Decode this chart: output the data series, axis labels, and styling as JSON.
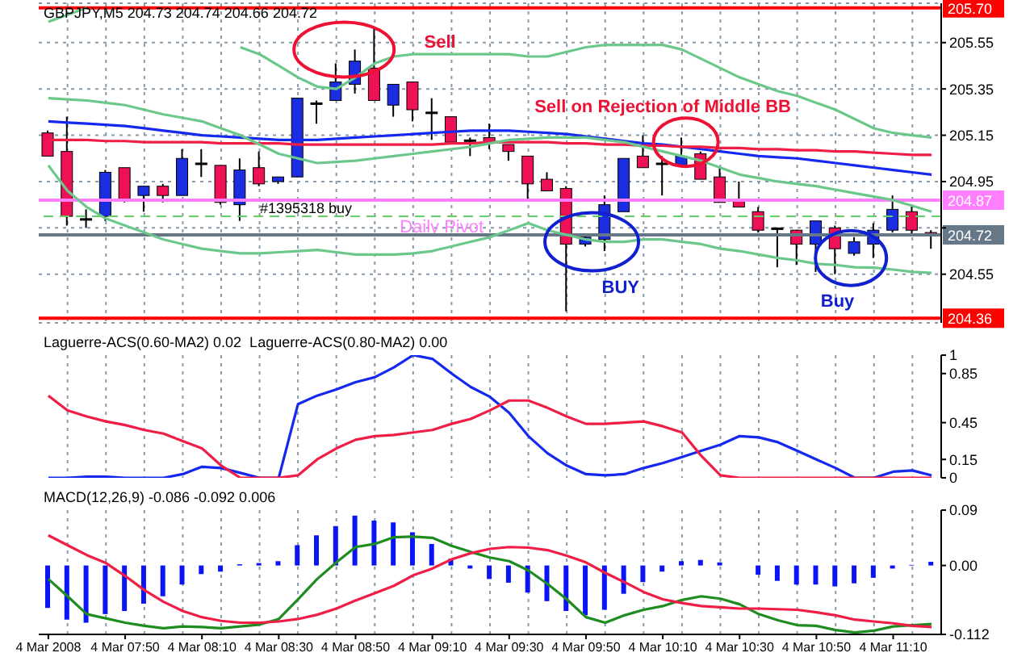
{
  "chart_data": [
    {
      "type": "candlestick",
      "title": "GBPJPY,M5 204.73 204.74 204.66 204.72",
      "categories": [
        null,
        null,
        null,
        null,
        null,
        null,
        null,
        null,
        null,
        null,
        null,
        null,
        null,
        null,
        null,
        null,
        null,
        null,
        null,
        null,
        null,
        null,
        null,
        null,
        null,
        null,
        null,
        null,
        null,
        null,
        null,
        null,
        null,
        null,
        null,
        null,
        null,
        null,
        null,
        null,
        null,
        null,
        null,
        null,
        null,
        null,
        null
      ],
      "ohlc": [
        [
          205.16,
          205.17,
          205.06,
          205.06
        ],
        [
          205.08,
          205.23,
          204.76,
          204.8
        ],
        [
          204.79,
          204.83,
          204.75,
          204.79
        ],
        [
          204.8,
          205.0,
          204.78,
          204.99
        ],
        [
          205.01,
          205.01,
          204.86,
          204.87
        ],
        [
          204.89,
          204.93,
          204.82,
          204.93
        ],
        [
          204.93,
          204.94,
          204.86,
          204.89
        ],
        [
          204.89,
          205.09,
          204.89,
          205.05
        ],
        [
          205.03,
          205.09,
          204.97,
          205.03
        ],
        [
          205.02,
          205.02,
          204.85,
          204.86
        ],
        [
          204.85,
          205.05,
          204.78,
          205.0
        ],
        [
          205.01,
          205.08,
          204.93,
          204.94
        ],
        [
          204.95,
          204.97,
          204.94,
          204.97
        ],
        [
          204.97,
          205.31,
          204.97,
          205.31
        ],
        [
          205.29,
          205.3,
          205.2,
          205.29
        ],
        [
          205.3,
          205.46,
          205.3,
          205.38
        ],
        [
          205.37,
          205.52,
          205.33,
          205.47
        ],
        [
          205.44,
          205.62,
          205.3,
          205.3
        ],
        [
          205.28,
          205.37,
          205.23,
          205.37
        ],
        [
          205.38,
          205.38,
          205.21,
          205.26
        ],
        [
          205.25,
          205.31,
          205.13,
          205.25
        ],
        [
          205.23,
          205.23,
          205.12,
          205.12
        ],
        [
          205.13,
          205.14,
          205.06,
          205.13
        ],
        [
          205.14,
          205.2,
          205.09,
          205.12
        ],
        [
          205.11,
          205.11,
          205.04,
          205.08
        ],
        [
          205.06,
          205.06,
          204.87,
          204.94
        ],
        [
          204.96,
          204.99,
          204.91,
          204.91
        ],
        [
          204.92,
          204.93,
          204.39,
          204.68
        ],
        [
          204.68,
          204.72,
          204.67,
          204.71
        ],
        [
          204.7,
          204.89,
          204.65,
          204.85
        ],
        [
          204.82,
          205.05,
          204.82,
          205.05
        ],
        [
          205.06,
          205.15,
          205.01,
          205.01
        ],
        [
          205.03,
          205.06,
          204.89,
          205.03
        ],
        [
          205.02,
          205.14,
          205.02,
          205.06
        ],
        [
          205.07,
          205.08,
          204.96,
          204.96
        ],
        [
          204.97,
          205.01,
          204.86,
          204.86
        ],
        [
          204.87,
          204.95,
          204.84,
          204.84
        ],
        [
          204.82,
          204.84,
          204.73,
          204.74
        ],
        [
          204.75,
          204.75,
          204.58,
          204.75
        ],
        [
          204.74,
          204.74,
          204.59,
          204.68
        ],
        [
          204.68,
          204.78,
          204.56,
          204.78
        ],
        [
          204.75,
          204.76,
          204.55,
          204.66
        ],
        [
          204.64,
          204.71,
          204.63,
          204.69
        ],
        [
          204.68,
          204.77,
          204.62,
          204.74
        ],
        [
          204.74,
          204.89,
          204.73,
          204.83
        ],
        [
          204.82,
          204.85,
          204.72,
          204.74
        ],
        [
          204.73,
          204.74,
          204.66,
          204.72
        ]
      ],
      "colors": [
        "#ee1155",
        "#ee1155",
        "#000000",
        "#1a2ee0",
        "#ee1155",
        "#1a2ee0",
        "#ee1155",
        "#1a2ee0",
        "#000000",
        "#ee1155",
        "#1a2ee0",
        "#ee1155",
        "#1a2ee0",
        "#1a2ee0",
        "#000000",
        "#1a2ee0",
        "#1a2ee0",
        "#ee1155",
        "#1a2ee0",
        "#ee1155",
        "#000000",
        "#ee1155",
        "#000000",
        "#ee1155",
        "#ee1155",
        "#ee1155",
        "#ee1155",
        "#ee1155",
        "#1a2ee0",
        "#1a2ee0",
        "#1a2ee0",
        "#ee1155",
        "#000000",
        "#1a2ee0",
        "#ee1155",
        "#ee1155",
        "#ee1155",
        "#ee1155",
        "#000000",
        "#ee1155",
        "#1a2ee0",
        "#ee1155",
        "#1a2ee0",
        "#1a2ee0",
        "#1a2ee0",
        "#ee1155",
        "#ee1155"
      ],
      "series": [
        {
          "type": "line",
          "color": "#1428f0",
          "values": [
            205.21,
            205.205,
            205.2,
            205.195,
            205.19,
            205.18,
            205.17,
            205.16,
            205.15,
            205.145,
            205.14,
            205.135,
            205.13,
            205.13,
            205.13,
            205.135,
            205.14,
            205.145,
            205.15,
            205.155,
            205.16,
            205.165,
            205.17,
            205.17,
            205.17,
            205.165,
            205.16,
            205.155,
            205.145,
            205.135,
            205.125,
            205.115,
            205.11,
            205.1,
            205.09,
            205.08,
            205.07,
            205.06,
            205.055,
            205.05,
            205.04,
            205.03,
            205.02,
            205.01,
            205.0,
            204.99,
            204.98
          ]
        },
        {
          "type": "line",
          "color": "#f01e46",
          "values": [
            205.13,
            205.13,
            205.13,
            205.125,
            205.125,
            205.12,
            205.12,
            205.12,
            205.12,
            205.115,
            205.115,
            205.115,
            205.115,
            205.11,
            205.11,
            205.11,
            205.11,
            205.11,
            205.11,
            205.11,
            205.11,
            205.115,
            205.115,
            205.12,
            205.12,
            205.12,
            205.12,
            205.115,
            205.115,
            205.11,
            205.11,
            205.105,
            205.105,
            205.1,
            205.1,
            205.095,
            205.095,
            205.09,
            205.09,
            205.085,
            205.085,
            205.08,
            205.08,
            205.075,
            205.07,
            205.065,
            205.065
          ]
        },
        {
          "type": "line",
          "color": "#6cc88a",
          "values": [
            205.64,
            205.67,
            205.7,
            null,
            null,
            null,
            null,
            null,
            null,
            null,
            205.53,
            205.5,
            205.45,
            205.4,
            205.36,
            205.35,
            205.4,
            205.46,
            205.49,
            205.5,
            205.5,
            205.5,
            205.5,
            205.5,
            205.5,
            205.49,
            205.49,
            205.51,
            205.53,
            205.54,
            205.54,
            205.54,
            205.54,
            205.52,
            205.48,
            205.44,
            205.4,
            205.37,
            205.34,
            205.32,
            205.29,
            205.26,
            205.22,
            205.18,
            205.16,
            205.15,
            205.14
          ]
        },
        {
          "type": "line",
          "color": "#6cc88a",
          "values": [
            205.31,
            205.305,
            205.3,
            205.29,
            205.28,
            205.26,
            205.24,
            205.225,
            205.21,
            205.18,
            205.15,
            205.11,
            205.07,
            205.05,
            205.03,
            205.035,
            205.04,
            205.05,
            205.06,
            205.07,
            205.08,
            205.09,
            205.1,
            205.115,
            205.13,
            205.135,
            205.14,
            205.14,
            205.14,
            205.13,
            205.12,
            205.1,
            205.08,
            205.06,
            205.04,
            205.01,
            204.98,
            204.965,
            204.95,
            204.94,
            204.93,
            204.915,
            204.9,
            204.885,
            204.87,
            204.845,
            204.82
          ]
        },
        {
          "type": "line",
          "color": "#6cc88a",
          "values": [
            205.02,
            204.91,
            204.84,
            204.79,
            204.76,
            204.73,
            204.7,
            204.68,
            204.66,
            204.65,
            204.64,
            204.64,
            204.645,
            204.65,
            204.655,
            204.645,
            204.635,
            204.635,
            204.635,
            204.64,
            204.65,
            204.67,
            204.69,
            204.71,
            204.74,
            204.77,
            204.74,
            204.72,
            204.7,
            204.69,
            204.69,
            204.7,
            204.7,
            204.69,
            204.68,
            204.66,
            204.65,
            204.635,
            204.62,
            204.61,
            204.595,
            204.59,
            204.58,
            204.578,
            204.57,
            204.56,
            204.556
          ]
        }
      ],
      "ylim": [
        204.34,
        205.72
      ],
      "yticks": [
        204.55,
        {
          "value": 204.75,
          "label": null
        },
        204.95,
        205.15,
        205.35,
        205.55
      ],
      "ref_lines": [
        {
          "axis": "y",
          "value": 205.7,
          "label": "205.70",
          "color": "#ff0000"
        },
        {
          "axis": "y",
          "value": 204.36,
          "label": "204.36",
          "color": "#ff0000"
        },
        {
          "axis": "y",
          "value": 204.87,
          "label": "Daily Pivot",
          "color": "#ff80ff"
        },
        {
          "axis": "y",
          "value": 204.8,
          "label": "#1395318 buy",
          "color": "#66cc66",
          "line_style": "dashed"
        },
        {
          "axis": "y",
          "value": 204.72,
          "label": "204.72",
          "color": "#667788"
        }
      ],
      "annotations": [
        "Sell",
        "Sell on Rejection of Middle BB",
        "BUY",
        "Buy",
        "204.87"
      ],
      "grid": true,
      "tick_labels": "y"
    },
    {
      "type": "line",
      "title": "Laguerre-ACS(0.60-MA2) 0.02  Laguerre-ACS(0.80-MA2) 0.00",
      "categories": [
        null,
        null,
        null,
        null,
        null,
        null,
        null,
        null,
        null,
        null,
        null,
        null,
        null,
        null,
        null,
        null,
        null,
        null,
        null,
        null,
        null,
        null,
        null,
        null,
        null,
        null,
        null,
        null,
        null,
        null,
        null,
        null,
        null,
        null,
        null,
        null,
        null,
        null,
        null,
        null,
        null,
        null,
        null,
        null,
        null,
        null,
        null
      ],
      "series": [
        {
          "color": "#1428f0",
          "values": [
            0,
            0,
            0.01,
            0.01,
            0,
            0,
            0,
            0.03,
            0.09,
            0.08,
            0.04,
            0,
            0,
            0.6,
            0.67,
            0.72,
            0.78,
            0.82,
            0.9,
            1.0,
            0.97,
            0.85,
            0.74,
            0.66,
            0.53,
            0.34,
            0.2,
            0.1,
            0.03,
            0.02,
            0.03,
            0.08,
            0.12,
            0.17,
            0.22,
            0.27,
            0.34,
            0.33,
            0.29,
            0.22,
            0.15,
            0.08,
            0,
            0,
            0.05,
            0.06,
            0.02
          ]
        },
        {
          "color": "#f01e46",
          "values": [
            0.67,
            0.55,
            0.5,
            0.46,
            0.43,
            0.39,
            0.36,
            0.3,
            0.24,
            0.1,
            0,
            0,
            0,
            0.02,
            0.15,
            0.24,
            0.31,
            0.34,
            0.35,
            0.37,
            0.39,
            0.44,
            0.48,
            0.55,
            0.63,
            0.63,
            0.57,
            0.5,
            0.44,
            0.44,
            0.45,
            0.46,
            0.42,
            0.37,
            0.18,
            0.02,
            0,
            0,
            0,
            0,
            0,
            0,
            0,
            0,
            0,
            0,
            0
          ]
        }
      ],
      "ylim": [
        0,
        1
      ],
      "yticks": [
        0,
        0.15,
        0.45,
        0.85,
        1
      ],
      "grid": "x",
      "tick_labels": "y"
    },
    {
      "type": "line",
      "title": "MACD(12,26,9) -0.086 -0.092 0.006",
      "categories": [
        "4 Mar 2008",
        null,
        null,
        null,
        "4 Mar 07:50",
        null,
        null,
        null,
        "4 Mar 08:10",
        null,
        null,
        null,
        "4 Mar 08:30",
        null,
        null,
        null,
        "4 Mar 08:50",
        null,
        null,
        null,
        "4 Mar 09:10",
        null,
        null,
        null,
        "4 Mar 09:30",
        null,
        null,
        null,
        "4 Mar 09:50",
        null,
        null,
        null,
        "4 Mar 10:10",
        null,
        null,
        null,
        "4 Mar 10:30",
        null,
        null,
        null,
        "4 Mar 10:50",
        null,
        null,
        null,
        "4 Mar 11:10",
        null,
        null
      ],
      "series": [
        {
          "type": "bar",
          "color": "#0a14f5",
          "values": [
            -0.069,
            -0.088,
            -0.093,
            -0.079,
            -0.074,
            -0.062,
            -0.05,
            -0.031,
            -0.014,
            -0.01,
            0.002,
            0.004,
            0.007,
            0.033,
            0.049,
            0.064,
            0.081,
            0.073,
            0.07,
            0.054,
            0.035,
            0.011,
            -0.005,
            -0.022,
            -0.028,
            -0.044,
            -0.058,
            -0.074,
            -0.081,
            -0.072,
            -0.046,
            -0.027,
            -0.01,
            0.007,
            0.009,
            0.005,
            0,
            -0.015,
            -0.025,
            -0.031,
            -0.031,
            -0.034,
            -0.029,
            -0.02,
            -0.005,
            0.001,
            0.006
          ]
        },
        {
          "type": "line",
          "color": "#1e8c1e",
          "values": [
            -0.022,
            -0.05,
            -0.079,
            -0.086,
            -0.093,
            -0.098,
            -0.102,
            -0.099,
            -0.1,
            -0.102,
            -0.099,
            -0.096,
            -0.087,
            -0.055,
            -0.022,
            0.005,
            0.03,
            0.035,
            0.046,
            0.047,
            0.045,
            0.032,
            0.022,
            0.013,
            0.007,
            -0.008,
            -0.03,
            -0.055,
            -0.084,
            -0.093,
            -0.081,
            -0.072,
            -0.066,
            -0.056,
            -0.05,
            -0.054,
            -0.063,
            -0.079,
            -0.089,
            -0.097,
            -0.098,
            -0.105,
            -0.109,
            -0.106,
            -0.099,
            -0.097,
            -0.095
          ]
        },
        {
          "type": "line",
          "color": "#f01e46",
          "values": [
            0.049,
            0.033,
            0.017,
            0.004,
            -0.017,
            -0.04,
            -0.059,
            -0.074,
            -0.084,
            -0.09,
            -0.093,
            -0.093,
            -0.091,
            -0.087,
            -0.08,
            -0.07,
            -0.057,
            -0.045,
            -0.033,
            -0.016,
            -0.005,
            0.01,
            0.02,
            0.027,
            0.03,
            0.029,
            0.025,
            0.016,
            0.005,
            -0.012,
            -0.027,
            -0.043,
            -0.055,
            -0.061,
            -0.066,
            -0.068,
            -0.07,
            -0.07,
            -0.071,
            -0.072,
            -0.076,
            -0.081,
            -0.088,
            -0.091,
            -0.094,
            -0.098,
            -0.1
          ]
        }
      ],
      "ylim": [
        -0.112,
        0.09
      ],
      "yticks": [
        -0.112,
        {
          "value": 0,
          "label": "0.00"
        },
        0.09
      ],
      "grid": "x"
    }
  ]
}
